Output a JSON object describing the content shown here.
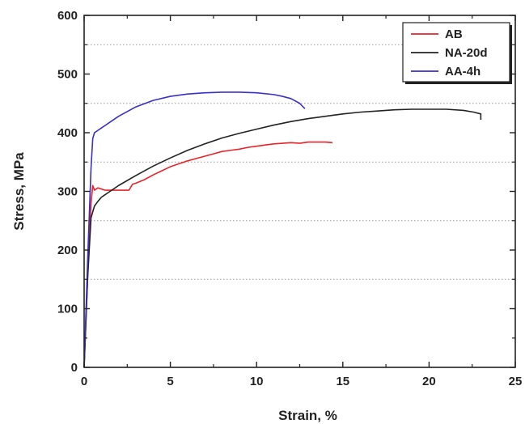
{
  "chart_data": {
    "type": "line",
    "xlabel": "Strain, %",
    "ylabel": "Stress, MPa",
    "xlim": [
      0,
      25
    ],
    "ylim": [
      0,
      600
    ],
    "xticks": [
      0,
      5,
      10,
      15,
      20,
      25
    ],
    "xtick_labels": [
      "0",
      "5",
      "10",
      "15",
      "20",
      "25"
    ],
    "yticks": [
      0,
      100,
      200,
      300,
      400,
      500,
      600
    ],
    "ytick_labels": [
      "0",
      "100",
      "200",
      "300",
      "400",
      "500",
      "600"
    ],
    "reference_lines_y": [
      150,
      250,
      350,
      450,
      550
    ],
    "legend_position": "top-right",
    "grid": false,
    "series": [
      {
        "name": "AB",
        "color": "#e8232a",
        "x": [
          0,
          0.2,
          0.4,
          0.5,
          0.6,
          0.8,
          1.2,
          2.0,
          2.6,
          2.8,
          3.0,
          3.5,
          4.0,
          4.5,
          5.0,
          5.5,
          6.0,
          6.5,
          7.0,
          7.5,
          8.0,
          8.5,
          9.0,
          9.5,
          10.0,
          10.5,
          11.0,
          11.5,
          12.0,
          12.5,
          13.0,
          13.5,
          14.0,
          14.4
        ],
        "y": [
          0,
          150,
          280,
          310,
          302,
          306,
          302,
          302,
          302,
          312,
          314,
          320,
          328,
          335,
          342,
          347,
          352,
          356,
          360,
          364,
          368,
          370,
          372,
          375,
          377,
          379,
          381,
          382,
          383,
          382,
          384,
          384,
          384,
          383
        ]
      },
      {
        "name": "NA-20d",
        "color": "#222222",
        "x": [
          0,
          0.2,
          0.4,
          0.6,
          0.8,
          1.0,
          1.5,
          2.0,
          3.0,
          4.0,
          5.0,
          6.0,
          7.0,
          8.0,
          9.0,
          10.0,
          11.0,
          12.0,
          13.0,
          14.0,
          15.0,
          16.0,
          17.0,
          18.0,
          19.0,
          20.0,
          21.0,
          22.0,
          22.6,
          23.0,
          23.0
        ],
        "y": [
          0,
          150,
          255,
          275,
          283,
          290,
          300,
          310,
          327,
          343,
          357,
          370,
          381,
          391,
          399,
          406,
          413,
          419,
          424,
          428,
          432,
          435,
          437,
          439,
          440,
          440,
          440,
          438,
          435,
          432,
          422
        ]
      },
      {
        "name": "AA-4h",
        "color": "#3a2ec8",
        "x": [
          0,
          0.2,
          0.4,
          0.5,
          0.6,
          0.8,
          1.0,
          1.5,
          2.0,
          3.0,
          4.0,
          5.0,
          6.0,
          7.0,
          8.0,
          9.0,
          10.0,
          11.0,
          11.5,
          12.0,
          12.5,
          12.8
        ],
        "y": [
          0,
          180,
          340,
          390,
          400,
          404,
          408,
          418,
          428,
          444,
          455,
          462,
          466,
          468,
          469,
          469,
          468,
          465,
          462,
          458,
          450,
          441
        ]
      }
    ]
  }
}
